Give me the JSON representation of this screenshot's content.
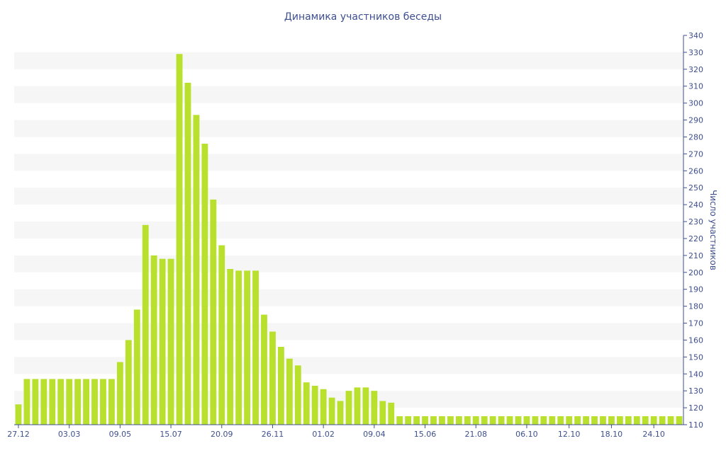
{
  "chart_data": {
    "type": "bar",
    "title": "Динамика участников беседы",
    "xlabel": "",
    "ylabel": "Число участников",
    "ylim": [
      110,
      340
    ],
    "yticks": [
      110,
      120,
      130,
      140,
      150,
      160,
      170,
      180,
      190,
      200,
      210,
      220,
      230,
      240,
      250,
      260,
      270,
      280,
      290,
      300,
      310,
      320,
      330,
      340
    ],
    "y_axis_side": "right",
    "grid": "alternating horizontal bands",
    "bar_color": "#b8e02c",
    "x_tick_labels": [
      {
        "index": 0,
        "label": "27.12"
      },
      {
        "index": 6,
        "label": "03.03"
      },
      {
        "index": 12,
        "label": "09.05"
      },
      {
        "index": 18,
        "label": "15.07"
      },
      {
        "index": 24,
        "label": "20.09"
      },
      {
        "index": 30,
        "label": "26.11"
      },
      {
        "index": 36,
        "label": "01.02"
      },
      {
        "index": 42,
        "label": "09.04"
      },
      {
        "index": 48,
        "label": "15.06"
      },
      {
        "index": 54,
        "label": "21.08"
      },
      {
        "index": 60,
        "label": "06.10"
      },
      {
        "index": 65,
        "label": "12.10"
      },
      {
        "index": 70,
        "label": "18.10"
      },
      {
        "index": 75,
        "label": "24.10"
      }
    ],
    "values": [
      122,
      137,
      137,
      137,
      137,
      137,
      137,
      137,
      137,
      137,
      137,
      137,
      147,
      160,
      178,
      228,
      210,
      208,
      208,
      329,
      312,
      293,
      276,
      243,
      216,
      202,
      201,
      201,
      201,
      175,
      165,
      156,
      149,
      145,
      135,
      133,
      131,
      126,
      124,
      130,
      132,
      132,
      130,
      124,
      123,
      115,
      115,
      115,
      115,
      115,
      115,
      115,
      115,
      115,
      115,
      115,
      115,
      115,
      115,
      115,
      115,
      115,
      115,
      115,
      115,
      115,
      115,
      115,
      115,
      115,
      115,
      115,
      115,
      115,
      115,
      115,
      115,
      115,
      115
    ]
  }
}
